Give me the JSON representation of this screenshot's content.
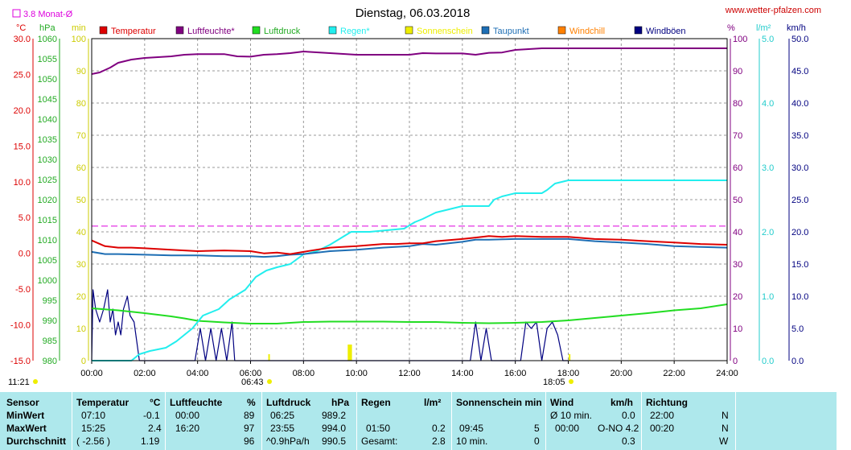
{
  "title": "Dienstag, 06.03.2018",
  "website": "www.wetter-pfalzen.com",
  "avg_note": "3.8 Monat-Ø",
  "left_units": {
    "temp": "°C",
    "pressure": "hPa",
    "minutes": "min"
  },
  "right_units": {
    "humidity": "%",
    "rain": "l/m²",
    "wind": "km/h"
  },
  "sun_times": {
    "sunrise": "06:43",
    "sunset": "18:05"
  },
  "corner_time": "11:21",
  "colors": {
    "temperatur": "#dd0000",
    "luftfeuchte": "#800080",
    "luftdruck": "#22dd22",
    "regen": "#22eeee",
    "sonnenschein": "#eeee00",
    "taupunkt": "#1e6eb4",
    "windchill": "#ff8000",
    "windboeen": "#000080",
    "avg_line": "#dd00dd",
    "table_bg": "#aee8ec"
  },
  "chart_data": {
    "type": "line",
    "title": "Dienstag, 06.03.2018",
    "x_ticks": [
      "00:00",
      "02:00",
      "04:00",
      "06:00",
      "08:00",
      "10:00",
      "12:00",
      "14:00",
      "16:00",
      "18:00",
      "20:00",
      "22:00",
      "24:00"
    ],
    "axes": {
      "temperature_c": {
        "ticks": [
          "30.0",
          "25.0",
          "20.0",
          "15.0",
          "10.0",
          "5.0",
          "0.0",
          "-5.0",
          "-10.0",
          "-15.0"
        ],
        "range": [
          -15,
          30
        ]
      },
      "pressure_hpa": {
        "ticks": [
          "1060",
          "1055",
          "1050",
          "1045",
          "1040",
          "1035",
          "1030",
          "1025",
          "1020",
          "1015",
          "1010",
          "1005",
          "1000",
          "995",
          "990",
          "985",
          "980"
        ],
        "range": [
          980,
          1060
        ]
      },
      "minutes": {
        "ticks": [
          "100",
          "90",
          "80",
          "70",
          "60",
          "50",
          "40",
          "30",
          "20",
          "10",
          "0"
        ],
        "range": [
          0,
          100
        ]
      },
      "humidity_pct": {
        "ticks": [
          "100",
          "90",
          "80",
          "70",
          "60",
          "50",
          "40",
          "30",
          "20",
          "10",
          "0"
        ],
        "range": [
          0,
          100
        ]
      },
      "rain_lm2": {
        "ticks": [
          "5.0",
          "4.0",
          "3.0",
          "2.0",
          "1.0",
          "0.0"
        ],
        "range": [
          0,
          5
        ]
      },
      "wind_kmh": {
        "ticks": [
          "50.0",
          "45.0",
          "40.0",
          "35.0",
          "30.0",
          "25.0",
          "20.0",
          "15.0",
          "10.0",
          "5.0",
          "0.0"
        ],
        "range": [
          0,
          50
        ]
      }
    },
    "legend": [
      "Temperatur",
      "Luftfeuchte*",
      "Luftdruck",
      "Regen*",
      "Sonnenschein",
      "Taupunkt",
      "Windchill",
      "Windböen"
    ],
    "avg_line_temp": 3.8,
    "series": [
      {
        "name": "Temperatur",
        "axis": "temperature_c",
        "x": [
          0,
          0.5,
          1,
          1.5,
          2,
          3,
          4,
          5,
          6,
          6.5,
          7,
          7.5,
          8,
          8.5,
          9,
          10,
          11,
          11.5,
          12,
          12.5,
          13,
          14,
          14.5,
          15,
          15.5,
          16,
          17,
          18,
          19,
          20,
          21,
          22,
          23,
          24
        ],
        "y": [
          1.8,
          1.0,
          0.8,
          0.8,
          0.7,
          0.5,
          0.3,
          0.4,
          0.3,
          0.0,
          0.1,
          -0.1,
          0.2,
          0.5,
          0.8,
          1.0,
          1.3,
          1.3,
          1.4,
          1.4,
          1.7,
          2.0,
          2.2,
          2.4,
          2.3,
          2.4,
          2.3,
          2.3,
          2.0,
          1.9,
          1.7,
          1.5,
          1.3,
          1.2
        ]
      },
      {
        "name": "Luftfeuchte*",
        "axis": "humidity_pct",
        "x": [
          0,
          0.3,
          0.7,
          1,
          1.5,
          2,
          3,
          3.5,
          4,
          5,
          5.5,
          6,
          6.5,
          7,
          7.5,
          8,
          9,
          10,
          11,
          12,
          12.5,
          13,
          14,
          14.5,
          15,
          15.5,
          16,
          17,
          18,
          19,
          20,
          21,
          22,
          23,
          24
        ],
        "y": [
          89,
          89.5,
          91,
          92.5,
          93.5,
          94,
          94.5,
          95,
          95.2,
          95.2,
          94.5,
          94.4,
          95,
          95.2,
          95.5,
          96,
          95.5,
          95,
          95,
          95,
          95.5,
          95.4,
          95.4,
          95,
          95.6,
          95.7,
          96.5,
          97,
          97,
          97,
          97,
          97,
          97,
          97,
          97
        ]
      },
      {
        "name": "Luftdruck",
        "axis": "pressure_hpa",
        "x": [
          0,
          1,
          2,
          3,
          3.5,
          4,
          5,
          6,
          7,
          8,
          9,
          10,
          11,
          12,
          13,
          14,
          15,
          16,
          17,
          18,
          19,
          20,
          21,
          22,
          23,
          24
        ],
        "y": [
          993.0,
          992.5,
          991.8,
          991.0,
          990.5,
          989.9,
          989.5,
          989.2,
          989.2,
          989.6,
          989.7,
          989.7,
          989.7,
          989.6,
          989.6,
          989.4,
          989.3,
          989.4,
          989.6,
          990.0,
          990.6,
          991.2,
          991.8,
          992.5,
          993.0,
          994.0
        ]
      },
      {
        "name": "Regen*",
        "axis": "rain_lm2",
        "x": [
          0,
          1.5,
          1.8,
          2.2,
          2.8,
          3.2,
          3.8,
          4.2,
          4.8,
          5.2,
          5.8,
          6.2,
          6.6,
          7,
          7.5,
          8,
          8.5,
          9,
          9.4,
          9.8,
          10.5,
          11.8,
          12.2,
          12.5,
          13,
          13.5,
          14,
          15,
          15.2,
          15.5,
          16,
          17,
          17.2,
          17.5,
          18,
          19,
          20,
          21,
          22,
          23,
          24
        ],
        "y": [
          0,
          0,
          0.1,
          0.15,
          0.2,
          0.3,
          0.5,
          0.7,
          0.8,
          0.95,
          1.1,
          1.3,
          1.4,
          1.45,
          1.5,
          1.65,
          1.7,
          1.8,
          1.9,
          2.0,
          2.0,
          2.05,
          2.15,
          2.2,
          2.3,
          2.35,
          2.4,
          2.4,
          2.5,
          2.55,
          2.6,
          2.6,
          2.65,
          2.75,
          2.8,
          2.8,
          2.8,
          2.8,
          2.8,
          2.8,
          2.8
        ]
      },
      {
        "name": "Sonnenschein",
        "axis": "minutes",
        "x": [
          6.7,
          9.7,
          9.75,
          9.8,
          18.05
        ],
        "y": [
          2,
          5,
          5,
          5,
          2
        ]
      },
      {
        "name": "Taupunkt",
        "axis": "temperature_c",
        "x": [
          0,
          0.5,
          1,
          2,
          3,
          4,
          5,
          6,
          6.5,
          7,
          7.5,
          8,
          9,
          10,
          11,
          12,
          12.5,
          13,
          14,
          14.5,
          15,
          16,
          17,
          18,
          19,
          20,
          21,
          22,
          23,
          24
        ],
        "y": [
          0.2,
          -0.1,
          -0.1,
          -0.2,
          -0.3,
          -0.3,
          -0.4,
          -0.4,
          -0.5,
          -0.4,
          -0.2,
          -0.1,
          0.3,
          0.5,
          0.8,
          1.0,
          1.3,
          1.2,
          1.6,
          1.9,
          1.9,
          2.0,
          2.0,
          2.0,
          1.7,
          1.5,
          1.3,
          1.0,
          0.9,
          0.8
        ]
      },
      {
        "name": "Windböen",
        "axis": "wind_kmh",
        "x": [
          0,
          0.05,
          0.15,
          0.3,
          0.45,
          0.6,
          0.7,
          0.8,
          0.9,
          1.0,
          1.1,
          1.2,
          1.35,
          1.45,
          1.6,
          1.8,
          1.9,
          3.9,
          4.1,
          4.3,
          4.5,
          4.7,
          4.9,
          5.1,
          5.3,
          5.4,
          14.3,
          14.5,
          14.7,
          14.9,
          15.1,
          15.3,
          16.2,
          16.4,
          16.6,
          16.8,
          17.0,
          17.2,
          17.4,
          17.6,
          17.8,
          18.0
        ],
        "y": [
          0,
          11,
          8,
          6,
          8,
          11,
          6,
          8,
          4,
          6,
          4,
          8,
          10,
          7,
          6,
          0,
          0,
          0,
          5,
          0,
          5,
          0,
          5,
          0,
          6,
          0,
          0,
          6,
          0,
          5,
          0,
          0,
          0,
          6,
          5,
          6,
          0,
          5,
          6,
          4,
          0,
          0
        ]
      }
    ]
  },
  "table": {
    "headers": {
      "sensor": "Sensor",
      "temp": "Temperatur",
      "temp_unit": "°C",
      "hum": "Luftfeuchte",
      "hum_unit": "%",
      "press": "Luftdruck",
      "press_unit": "hPa",
      "rain": "Regen",
      "rain_unit": "l/m²",
      "sun": "Sonnenschein min",
      "wind": "Wind",
      "wind_unit": "km/h",
      "dir": "Richtung"
    },
    "rows": [
      {
        "label": "MinWert",
        "temp_time": "07:10",
        "temp_val": "-0.1",
        "hum_time": "00:00",
        "hum_val": "89",
        "press_time": "06:25",
        "press_val": "989.2",
        "rain_time": "",
        "rain_val": "",
        "sun_time": "",
        "sun_val": "",
        "wind_time": "Ø 10 min.",
        "wind_val": "0.0",
        "dir_time": "22:00",
        "dir_val": "N"
      },
      {
        "label": "MaxWert",
        "temp_time": "15:25",
        "temp_val": "2.4",
        "hum_time": "16:20",
        "hum_val": "97",
        "press_time": "23:55",
        "press_val": "994.0",
        "rain_time": "01:50",
        "rain_val": "0.2",
        "sun_time": "09:45",
        "sun_val": "5",
        "wind_time": "00:00",
        "wind_val": "O-NO 4.2",
        "dir_time": "00:20",
        "dir_val": "N"
      },
      {
        "label": "Durchschnitt",
        "temp_time": "( -2.56 )",
        "temp_val": "1.19",
        "hum_time": "",
        "hum_val": "96",
        "press_time": "^0.9hPa/h",
        "press_val": "990.5",
        "rain_time": "Gesamt:",
        "rain_val": "2.8",
        "sun_time": "10 min.",
        "sun_val": "0",
        "wind_time": "",
        "wind_val": "0.3",
        "dir_time": "",
        "dir_val": "W"
      }
    ]
  }
}
